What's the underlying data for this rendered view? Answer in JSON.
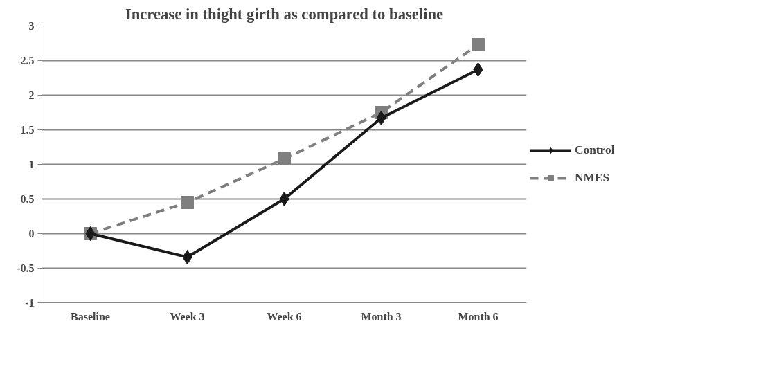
{
  "chart_data": {
    "type": "line",
    "title": "Increase in thight girth as compared to baseline",
    "categories": [
      "Baseline",
      "Week 3",
      "Week 6",
      "Month 3",
      "Month 6"
    ],
    "series": [
      {
        "name": "Control",
        "color": "#1a1a1a",
        "marker": "diamond",
        "line_style": "solid",
        "values": [
          0,
          -0.34,
          0.5,
          1.67,
          2.37
        ]
      },
      {
        "name": "NMES",
        "color": "#7f7f7f",
        "marker": "square",
        "line_style": "dashed",
        "values": [
          0,
          0.45,
          1.08,
          1.75,
          2.73
        ]
      }
    ],
    "ylim": [
      -1,
      3
    ],
    "yticks": [
      -1,
      -0.5,
      0,
      0.5,
      1,
      1.5,
      2,
      2.5,
      3
    ],
    "grid": "y",
    "legend": "right"
  }
}
